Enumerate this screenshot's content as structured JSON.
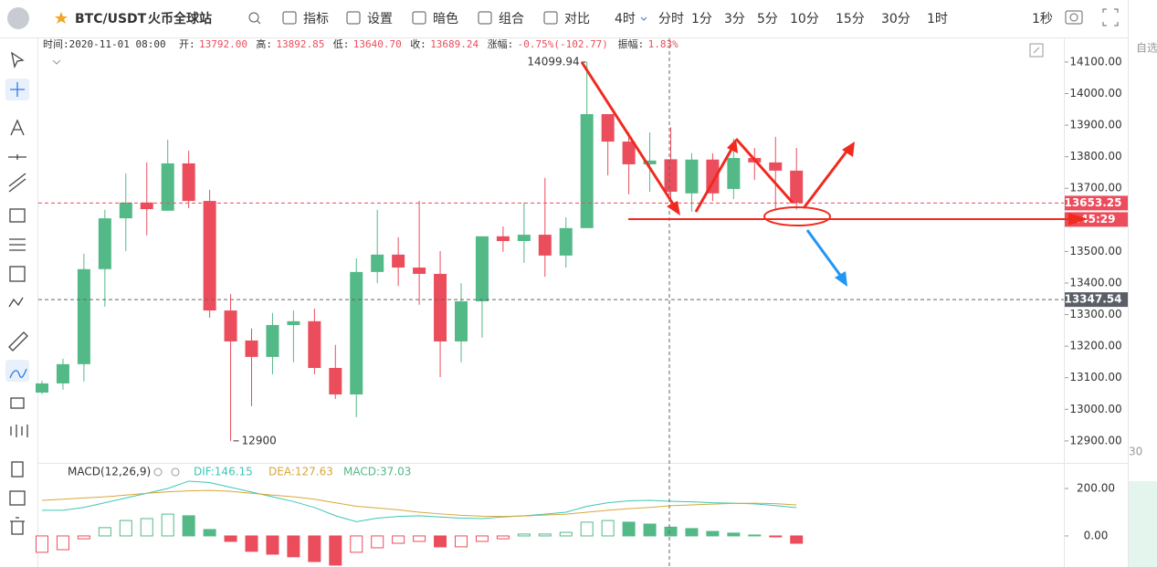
{
  "toolbar": {
    "symbol": "BTC/USDT",
    "exchange": "火币全球站",
    "buttons": [
      "指标",
      "设置",
      "暗色",
      "组合",
      "对比"
    ],
    "intervals": [
      "4时",
      "分时",
      "1分",
      "3分",
      "5分",
      "10分",
      "15分",
      "30分",
      "1时"
    ],
    "speed": "1秒"
  },
  "info": {
    "time": "时间:2020-11-01 08:00",
    "items": [
      {
        "label": "开:",
        "value": "13792.00"
      },
      {
        "label": "高:",
        "value": "13892.85"
      },
      {
        "label": "低:",
        "value": "13640.70"
      },
      {
        "label": "收:",
        "value": "13689.24"
      },
      {
        "label": "涨幅:",
        "value": "-0.75%(-102.77)"
      },
      {
        "label": "振幅:",
        "value": "1.83%"
      }
    ]
  },
  "sidebar": {
    "title": "自选",
    "number": "30"
  },
  "chart_data": [
    {
      "type": "candlestick",
      "up_color": "#53b987",
      "down_color": "#eb4d5c",
      "open": [
        13053,
        13082,
        13143,
        13444,
        13605,
        13655,
        13629,
        13779,
        13660,
        13313,
        13218,
        13166,
        13267,
        13279,
        13131,
        13047,
        13435,
        13490,
        13449,
        13429,
        13215,
        13342,
        13548,
        13533,
        13553,
        13487,
        13574,
        13935,
        13848,
        13776,
        13792,
        13684,
        13791,
        13698,
        13796,
        13782,
        13756
      ],
      "high": [
        13090,
        13160,
        13493,
        13632,
        13747,
        13782,
        13854,
        13819,
        13695,
        13365,
        13256,
        13305,
        13313,
        13319,
        13204,
        13478,
        13632,
        13545,
        13660,
        13501,
        13400,
        13548,
        13579,
        13655,
        13733,
        13608,
        14099.94,
        13935,
        13877,
        13877,
        13892.85,
        13811,
        13811,
        13857,
        13828,
        13863,
        13828
      ],
      "low": [
        13048,
        13062,
        13088,
        13325,
        13501,
        13551,
        13629,
        13637,
        13290,
        12900,
        13010,
        13111,
        13149,
        13111,
        13033,
        12975,
        13400,
        13391,
        13331,
        13102,
        13149,
        13227,
        13499,
        13464,
        13420,
        13449,
        13574,
        13741,
        13681,
        13689,
        13640.7,
        13626,
        13660,
        13666,
        13727,
        13632,
        13632
      ],
      "close": [
        13082,
        13143,
        13444,
        13605,
        13655,
        13634,
        13779,
        13660,
        13313,
        13215,
        13166,
        13267,
        13279,
        13131,
        13047,
        13435,
        13490,
        13449,
        13429,
        13215,
        13342,
        13548,
        13533,
        13553,
        13487,
        13574,
        13935,
        13848,
        13776,
        13788,
        13689.24,
        13791,
        13684,
        13796,
        13782,
        13756,
        13653.25
      ],
      "ylim": [
        12836,
        14175
      ],
      "yticks": [
        {
          "value": 12900,
          "label": "12900.00"
        },
        {
          "value": 13000,
          "label": "13000.00"
        },
        {
          "value": 13100,
          "label": "13100.00"
        },
        {
          "value": 13200,
          "label": "13200.00"
        },
        {
          "value": 13300,
          "label": "13300.00"
        },
        {
          "value": 13400,
          "label": "13400.00"
        },
        {
          "value": 13500,
          "label": "13500.00"
        },
        {
          "value": 13600,
          "label": "13600.00"
        },
        {
          "value": 13700,
          "label": "13700.00"
        },
        {
          "value": 13800,
          "label": "13800.00"
        },
        {
          "value": 13900,
          "label": "13900.00"
        },
        {
          "value": 14000,
          "label": "14000.00"
        },
        {
          "value": 14100,
          "label": "14100.00"
        }
      ],
      "marker_line": 13347.54,
      "countdown": ":45:29"
    },
    {
      "type": "macd",
      "title": "MACD(12,26,9)",
      "ylim": [
        -131,
        304
      ],
      "yticks": [
        {
          "value": 0,
          "label": "0.00"
        },
        {
          "value": 200,
          "label": "200.00"
        }
      ],
      "series": [
        {
          "label": "DIF:146.15",
          "color": "#3ec6b5",
          "values": [
            108,
            108,
            120,
            140,
            160,
            180,
            200,
            231,
            225,
            205,
            185,
            165,
            145,
            120,
            85,
            60,
            75,
            82,
            85,
            80,
            75,
            73,
            80,
            85,
            92,
            100,
            125,
            140,
            148,
            150,
            146.15,
            144,
            140,
            138,
            135,
            128,
            119
          ]
        },
        {
          "label": "DEA:127.63",
          "color": "#d8a73a",
          "values": [
            150,
            155,
            160,
            165,
            172,
            180,
            186,
            190,
            192,
            188,
            180,
            172,
            165,
            155,
            140,
            125,
            118,
            110,
            100,
            93,
            87,
            83,
            82,
            84,
            88,
            92,
            100,
            108,
            115,
            120,
            127.63,
            131,
            134,
            137,
            138,
            136,
            131
          ]
        },
        {
          "label": "MACD:37.03",
          "color": "#53b987",
          "down_color": "#eb4d5c",
          "values": [
            -69,
            -58,
            -12,
            35,
            65,
            73,
            92,
            85,
            27,
            -23,
            -65,
            -77,
            -88,
            -108,
            -123,
            -69,
            -50,
            -31,
            -23,
            -46,
            -46,
            -23,
            -12,
            8,
            8,
            15,
            58,
            65,
            58,
            50,
            37.03,
            31,
            19,
            12,
            4,
            -4,
            -31
          ]
        }
      ]
    }
  ]
}
